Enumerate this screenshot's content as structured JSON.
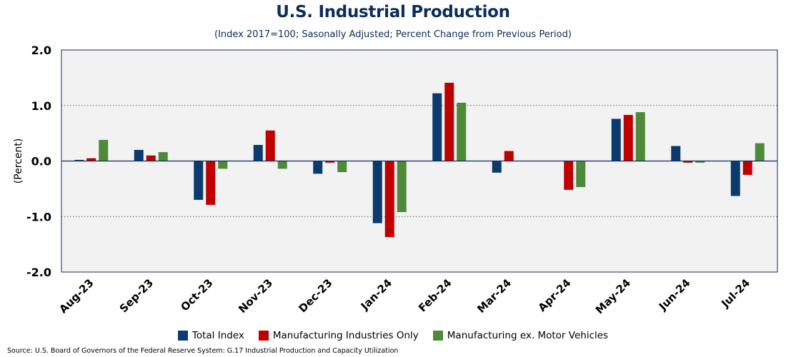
{
  "source": "Source: U.S. Board of Governors of the Federal Reserve System: G.17 Industrial Production and Capacity Utilization",
  "chart_data": {
    "type": "bar",
    "title": "U.S. Industrial Production",
    "subtitle": "(Index 2017=100; Sasonally Adjusted; Percent Change from Previous Period)",
    "ylabel": "(Percent)",
    "xlabel": "",
    "ylim": [
      -2.0,
      2.0
    ],
    "yticks": [
      "2.0",
      "1.0",
      "0.0",
      "-1.0",
      "-2.0"
    ],
    "ytick_values": [
      2.0,
      1.0,
      0.0,
      -1.0,
      -2.0
    ],
    "grid": true,
    "legend_position": "bottom",
    "categories": [
      "Aug-23",
      "Sep-23",
      "Oct-23",
      "Nov-23",
      "Dec-23",
      "Jan-24",
      "Feb-24",
      "Mar-24",
      "Apr-24",
      "May-24",
      "Jun-24",
      "Jul-24"
    ],
    "series": [
      {
        "name": "Total Index",
        "color": "#0b3a6e",
        "values": [
          0.02,
          0.2,
          -0.7,
          0.29,
          -0.23,
          -1.12,
          1.22,
          -0.21,
          0.0,
          0.76,
          0.27,
          -0.63
        ]
      },
      {
        "name": "Manufacturing Industries Only",
        "color": "#c00000",
        "values": [
          0.05,
          0.1,
          -0.79,
          0.55,
          -0.03,
          -1.37,
          1.41,
          0.18,
          -0.52,
          0.83,
          -0.03,
          -0.25
        ]
      },
      {
        "name": "Manufacturing ex. Motor Vehicles",
        "color": "#4e8a3a",
        "values": [
          0.38,
          0.16,
          -0.14,
          -0.14,
          -0.2,
          -0.92,
          1.05,
          0.0,
          -0.47,
          0.88,
          -0.03,
          0.32
        ]
      }
    ]
  }
}
